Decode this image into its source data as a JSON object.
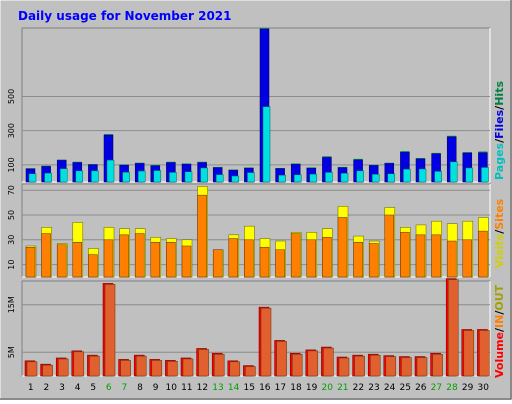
{
  "title": "Daily usage for November 2021",
  "colors": {
    "background": "#C0C0C0",
    "pages": "#00E0E0",
    "files": "#0000E0",
    "hits": "#008040",
    "visits": "#FFFF00",
    "sites": "#FF8000",
    "kbytes": "#FF0000",
    "kbytes_front": "#E06030",
    "title": "#0000FF",
    "weekend_label": "#00A000"
  },
  "chart_data": [
    {
      "type": "bar",
      "panel": "hits",
      "categories": [
        "1",
        "2",
        "3",
        "4",
        "5",
        "6",
        "7",
        "8",
        "9",
        "10",
        "11",
        "12",
        "13",
        "14",
        "15",
        "16",
        "17",
        "18",
        "19",
        "20",
        "21",
        "22",
        "23",
        "24",
        "25",
        "26",
        "27",
        "28",
        "29",
        "30"
      ],
      "weekend_days": [
        "6",
        "7",
        "13",
        "14",
        "20",
        "21",
        "27",
        "28"
      ],
      "ylim": [
        0,
        900
      ],
      "ticks": [
        "100",
        "300",
        "500"
      ],
      "right_label": {
        "pages": "Pages",
        "files": "Files",
        "hits": "Hits"
      },
      "series": [
        {
          "name": "Hits",
          "values": [
            80,
            95,
            130,
            118,
            105,
            280,
            102,
            112,
            100,
            118,
            108,
            118,
            88,
            72,
            85,
            900,
            82,
            108,
            85,
            150,
            88,
            135,
            100,
            112,
            180,
            140,
            170,
            270,
            175,
            178
          ]
        },
        {
          "name": "Files",
          "values": [
            78,
            92,
            128,
            115,
            102,
            275,
            100,
            110,
            96,
            115,
            105,
            115,
            85,
            70,
            82,
            895,
            80,
            105,
            82,
            145,
            85,
            130,
            98,
            110,
            175,
            136,
            166,
            265,
            170,
            172
          ]
        },
        {
          "name": "Pages",
          "values": [
            48,
            52,
            78,
            65,
            65,
            128,
            57,
            64,
            67,
            56,
            60,
            82,
            43,
            35,
            55,
            440,
            40,
            42,
            46,
            56,
            51,
            65,
            45,
            48,
            75,
            76,
            62,
            118,
            82,
            85
          ]
        }
      ]
    },
    {
      "type": "bar",
      "panel": "visits",
      "categories": [
        "1",
        "2",
        "3",
        "4",
        "5",
        "6",
        "7",
        "8",
        "9",
        "10",
        "11",
        "12",
        "13",
        "14",
        "15",
        "16",
        "17",
        "18",
        "19",
        "20",
        "21",
        "22",
        "23",
        "24",
        "25",
        "26",
        "27",
        "28",
        "29",
        "30"
      ],
      "ylim": [
        0,
        75
      ],
      "ticks": [
        "10",
        "30",
        "50",
        "70"
      ],
      "right_label": {
        "visits": "Visits",
        "sites": "Sites"
      },
      "series": [
        {
          "name": "Visits",
          "values": [
            25,
            40,
            27,
            44,
            23,
            40,
            39,
            39,
            32,
            31,
            30,
            73,
            22,
            34,
            41,
            31,
            29,
            36,
            36,
            39,
            57,
            33,
            29,
            56,
            40,
            42,
            45,
            43,
            45,
            48
          ]
        },
        {
          "name": "Sites",
          "values": [
            24,
            35,
            26,
            28,
            18,
            30,
            34,
            35,
            28,
            28,
            25,
            66,
            22,
            31,
            30,
            24,
            22,
            35,
            30,
            32,
            48,
            28,
            27,
            50,
            36,
            34,
            34,
            29,
            30,
            37
          ]
        }
      ]
    },
    {
      "type": "bar",
      "panel": "volume",
      "categories": [
        "1",
        "2",
        "3",
        "4",
        "5",
        "6",
        "7",
        "8",
        "9",
        "10",
        "11",
        "12",
        "13",
        "14",
        "15",
        "16",
        "17",
        "18",
        "19",
        "20",
        "21",
        "22",
        "23",
        "24",
        "25",
        "26",
        "27",
        "28",
        "29",
        "30"
      ],
      "ylim": [
        0,
        20
      ],
      "ticks": [
        "5M",
        "15M"
      ],
      "right_label": {
        "volume": "Volume",
        "in": "IN",
        "out": "OUT"
      },
      "series": [
        {
          "name": "Volume",
          "values": [
            3.2,
            2.5,
            3.8,
            5.3,
            4.4,
            19.5,
            3.5,
            4.4,
            3.5,
            3.3,
            3.8,
            5.8,
            4.8,
            3.2,
            2.2,
            14.5,
            7.5,
            4.8,
            5.5,
            6.1,
            4.0,
            4.4,
            4.6,
            4.3,
            4.1,
            4.1,
            4.8,
            20.5,
            9.8,
            9.8
          ]
        }
      ]
    }
  ]
}
